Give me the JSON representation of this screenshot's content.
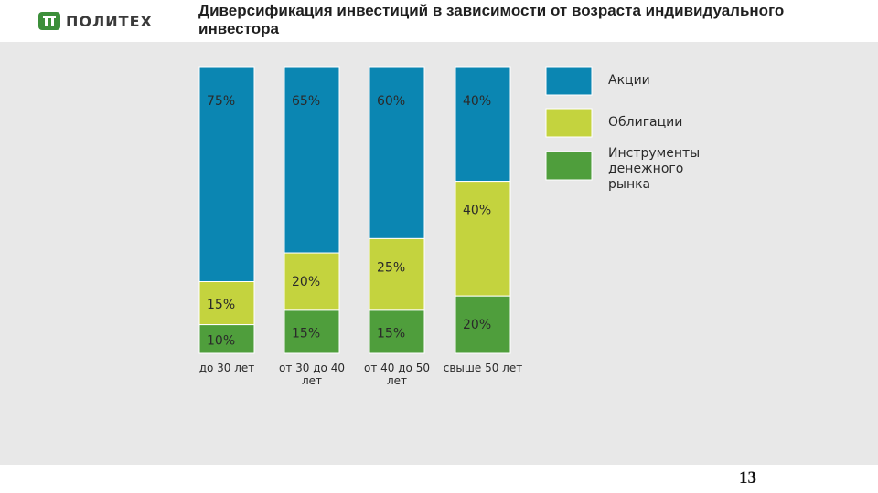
{
  "logo": {
    "text": "ПОЛИТЕХ"
  },
  "title": "Диверсификация инвестиций в зависимости от возраста индивидуального инвестора",
  "page_number": "13",
  "colors": {
    "stocks": "#0b86b2",
    "bonds": "#c4d33e",
    "money": "#4f9e3c",
    "panel": "#e8e8e8"
  },
  "chart_data": {
    "type": "bar",
    "stacked": true,
    "percent": true,
    "categories": [
      "до 30 лет",
      "от 30 до 40 лет",
      "от 40 до 50 лет",
      "свыше 50 лет"
    ],
    "series": [
      {
        "name": "Акции",
        "color": "#0b86b2",
        "values": [
          75,
          65,
          60,
          40
        ],
        "labels": [
          "75%",
          "65%",
          "60%",
          "40%"
        ]
      },
      {
        "name": "Облигации",
        "color": "#c4d33e",
        "values": [
          15,
          20,
          25,
          40
        ],
        "labels": [
          "15%",
          "20%",
          "25%",
          "40%"
        ]
      },
      {
        "name": "Инструменты денежного рынка",
        "color": "#4f9e3c",
        "values": [
          10,
          15,
          15,
          20
        ],
        "labels": [
          "10%",
          "15%",
          "15%",
          "20%"
        ]
      }
    ],
    "ylim": [
      0,
      100
    ],
    "legend_position": "right",
    "grid": false
  }
}
